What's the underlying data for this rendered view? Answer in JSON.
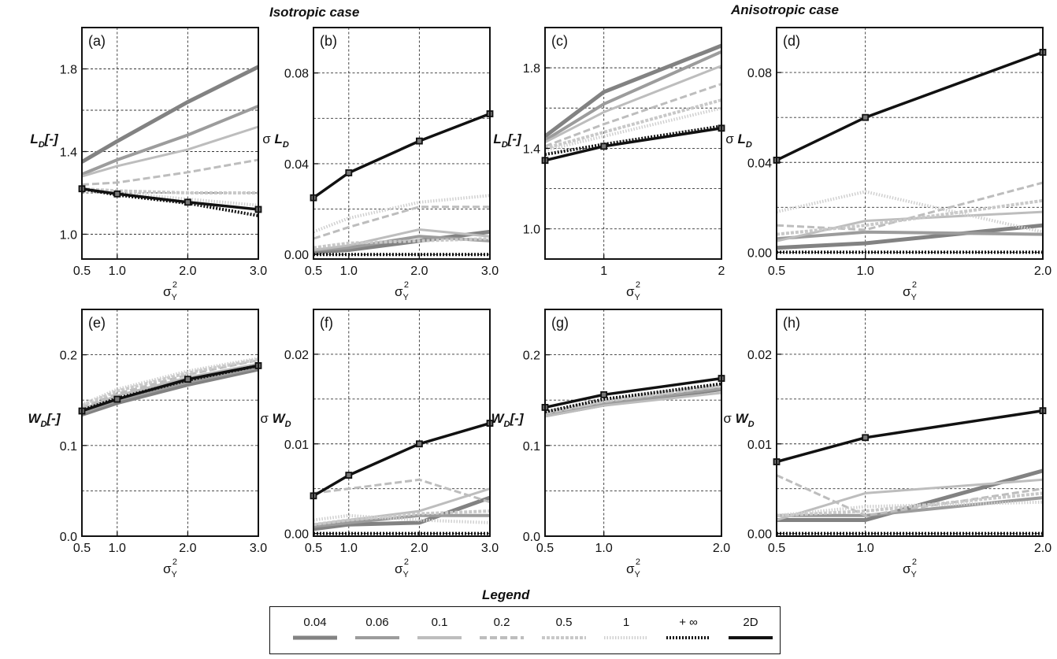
{
  "titles": {
    "isotropic": "Isotropic case",
    "anisotropic": "Anisotropic case"
  },
  "legend": {
    "title": "Legend",
    "items": [
      {
        "label": "0.04",
        "color": "#828282",
        "width": 5,
        "dash": ""
      },
      {
        "label": "0.06",
        "color": "#9c9c9c",
        "width": 4,
        "dash": ""
      },
      {
        "label": "0.1",
        "color": "#bdbdbd",
        "width": 3,
        "dash": ""
      },
      {
        "label": "0.2",
        "color": "#bdbdbd",
        "width": 3,
        "dash": "9 4"
      },
      {
        "label": "0.5",
        "color": "#c8c8c8",
        "width": 4,
        "dash": "4 2"
      },
      {
        "label": "1",
        "color": "#d0d0d0",
        "width": 4,
        "dash": "1.5 2"
      },
      {
        "label": "+ ∞",
        "color": "#111111",
        "width": 4,
        "dash": "2 2"
      },
      {
        "label": "2D",
        "color": "#111111",
        "width": 3.5,
        "dash": "",
        "markers": true
      }
    ]
  },
  "chart_data": [
    {
      "panel": "(a)",
      "type": "line",
      "ylabel": "L_D[-]",
      "xlabel": "σ_Y^2",
      "xlim": [
        0.5,
        3
      ],
      "ylim": [
        0.88,
        2.0
      ],
      "xticks": [
        0.5,
        1,
        2,
        3
      ],
      "yticks": [
        1.0,
        1.4,
        1.8
      ],
      "ygrid": [
        1.0,
        1.2,
        1.4,
        1.6,
        1.8
      ],
      "series": [
        {
          "name": "0.04",
          "x": [
            0.5,
            1,
            2,
            3
          ],
          "y": [
            1.35,
            1.45,
            1.64,
            1.81
          ]
        },
        {
          "name": "0.06",
          "x": [
            0.5,
            1,
            2,
            3
          ],
          "y": [
            1.29,
            1.36,
            1.48,
            1.62
          ]
        },
        {
          "name": "0.1",
          "x": [
            0.5,
            1,
            2,
            3
          ],
          "y": [
            1.28,
            1.33,
            1.41,
            1.52
          ]
        },
        {
          "name": "0.2",
          "x": [
            0.5,
            1,
            2,
            3
          ],
          "y": [
            1.24,
            1.25,
            1.3,
            1.36
          ]
        },
        {
          "name": "0.5",
          "x": [
            0.5,
            1,
            2,
            3
          ],
          "y": [
            1.22,
            1.21,
            1.2,
            1.2
          ]
        },
        {
          "name": "1",
          "x": [
            0.5,
            1,
            2,
            3
          ],
          "y": [
            1.21,
            1.2,
            1.17,
            1.14
          ]
        },
        {
          "name": "+ ∞",
          "x": [
            0.5,
            1,
            2,
            3
          ],
          "y": [
            1.22,
            1.19,
            1.15,
            1.09
          ]
        },
        {
          "name": "2D",
          "x": [
            0.5,
            1,
            2,
            3
          ],
          "y": [
            1.22,
            1.195,
            1.155,
            1.12
          ]
        }
      ]
    },
    {
      "panel": "(b)",
      "type": "line",
      "ylabel": "σ L_D",
      "xlabel": "σ_Y^2",
      "xlim": [
        0.5,
        3
      ],
      "ylim": [
        -0.002,
        0.1
      ],
      "xticks": [
        0.5,
        1,
        2,
        3
      ],
      "yticks": [
        0.0,
        0.04,
        0.08
      ],
      "ygrid": [
        0.0,
        0.02,
        0.04,
        0.06,
        0.08
      ],
      "series": [
        {
          "name": "0.04",
          "x": [
            0.5,
            1,
            2,
            3
          ],
          "y": [
            0.001,
            0.002,
            0.006,
            0.01
          ]
        },
        {
          "name": "0.06",
          "x": [
            0.5,
            1,
            2,
            3
          ],
          "y": [
            0.002,
            0.003,
            0.008,
            0.006
          ]
        },
        {
          "name": "0.1",
          "x": [
            0.5,
            1,
            2,
            3
          ],
          "y": [
            0.002,
            0.004,
            0.011,
            0.008
          ]
        },
        {
          "name": "0.2",
          "x": [
            0.5,
            1,
            2,
            3
          ],
          "y": [
            0.007,
            0.012,
            0.021,
            0.021
          ]
        },
        {
          "name": "0.5",
          "x": [
            0.5,
            1,
            2,
            3
          ],
          "y": [
            0.003,
            0.005,
            0.006,
            0.007
          ]
        },
        {
          "name": "1",
          "x": [
            0.5,
            1,
            2,
            3
          ],
          "y": [
            0.01,
            0.016,
            0.023,
            0.026
          ]
        },
        {
          "name": "+ ∞",
          "x": [
            0.5,
            1,
            2,
            3
          ],
          "y": [
            0.0,
            0.0,
            0.0,
            0.0
          ]
        },
        {
          "name": "2D",
          "x": [
            0.5,
            1,
            2,
            3
          ],
          "y": [
            0.025,
            0.036,
            0.05,
            0.062
          ]
        }
      ]
    },
    {
      "panel": "(c)",
      "type": "line",
      "ylabel": "L_D[-]",
      "xlabel": "σ_Y^2",
      "xlim": [
        0.5,
        2
      ],
      "ylim": [
        0.85,
        2.0
      ],
      "xticks": [
        1,
        2
      ],
      "yticks": [
        1.0,
        1.4,
        1.8
      ],
      "ygrid": [
        1.0,
        1.2,
        1.4,
        1.6,
        1.8
      ],
      "series": [
        {
          "name": "0.04",
          "x": [
            0.5,
            1,
            2
          ],
          "y": [
            1.46,
            1.68,
            1.91
          ]
        },
        {
          "name": "0.06",
          "x": [
            0.5,
            1,
            2
          ],
          "y": [
            1.44,
            1.62,
            1.88
          ]
        },
        {
          "name": "0.1",
          "x": [
            0.5,
            1,
            2
          ],
          "y": [
            1.43,
            1.58,
            1.81
          ]
        },
        {
          "name": "0.2",
          "x": [
            0.5,
            1,
            2
          ],
          "y": [
            1.41,
            1.52,
            1.72
          ]
        },
        {
          "name": "0.5",
          "x": [
            0.5,
            1,
            2
          ],
          "y": [
            1.4,
            1.48,
            1.64
          ]
        },
        {
          "name": "1",
          "x": [
            0.5,
            1,
            2
          ],
          "y": [
            1.39,
            1.46,
            1.6
          ]
        },
        {
          "name": "+ ∞",
          "x": [
            0.5,
            1,
            2
          ],
          "y": [
            1.37,
            1.42,
            1.51
          ]
        },
        {
          "name": "2D",
          "x": [
            0.5,
            1,
            2
          ],
          "y": [
            1.34,
            1.41,
            1.5
          ]
        }
      ]
    },
    {
      "panel": "(d)",
      "type": "line",
      "ylabel": "σ L_D",
      "xlabel": "σ_Y^2",
      "xlim": [
        0.5,
        2
      ],
      "ylim": [
        -0.003,
        0.1
      ],
      "xticks": [
        0.5,
        1,
        2
      ],
      "yticks": [
        0.0,
        0.04,
        0.08
      ],
      "ygrid": [
        0.0,
        0.02,
        0.04,
        0.06,
        0.08
      ],
      "series": [
        {
          "name": "0.04",
          "x": [
            0.5,
            1,
            2
          ],
          "y": [
            0.002,
            0.004,
            0.012
          ]
        },
        {
          "name": "0.06",
          "x": [
            0.5,
            1,
            2
          ],
          "y": [
            0.006,
            0.009,
            0.008
          ]
        },
        {
          "name": "0.1",
          "x": [
            0.5,
            1,
            2
          ],
          "y": [
            0.005,
            0.014,
            0.018
          ]
        },
        {
          "name": "0.2",
          "x": [
            0.5,
            1,
            2
          ],
          "y": [
            0.012,
            0.01,
            0.031
          ]
        },
        {
          "name": "0.5",
          "x": [
            0.5,
            1,
            2
          ],
          "y": [
            0.008,
            0.012,
            0.023
          ]
        },
        {
          "name": "1",
          "x": [
            0.5,
            1,
            2
          ],
          "y": [
            0.018,
            0.027,
            0.009
          ]
        },
        {
          "name": "+ ∞",
          "x": [
            0.5,
            1,
            2
          ],
          "y": [
            0.0,
            0.0,
            0.0
          ]
        },
        {
          "name": "2D",
          "x": [
            0.5,
            1,
            2
          ],
          "y": [
            0.041,
            0.06,
            0.089
          ]
        }
      ]
    },
    {
      "panel": "(e)",
      "type": "line",
      "ylabel": "W_D[-]",
      "xlabel": "σ_Y^2",
      "xlim": [
        0.5,
        3
      ],
      "ylim": [
        0.0,
        0.25
      ],
      "xticks": [
        0.5,
        1,
        2,
        3
      ],
      "yticks": [
        0.0,
        0.1,
        0.2
      ],
      "ygrid": [
        0.05,
        0.1,
        0.15,
        0.2
      ],
      "series": [
        {
          "name": "0.04",
          "x": [
            0.5,
            1,
            2,
            3
          ],
          "y": [
            0.134,
            0.147,
            0.167,
            0.184
          ]
        },
        {
          "name": "0.06",
          "x": [
            0.5,
            1,
            2,
            3
          ],
          "y": [
            0.136,
            0.15,
            0.17,
            0.186
          ]
        },
        {
          "name": "0.1",
          "x": [
            0.5,
            1,
            2,
            3
          ],
          "y": [
            0.14,
            0.155,
            0.175,
            0.19
          ]
        },
        {
          "name": "0.2",
          "x": [
            0.5,
            1,
            2,
            3
          ],
          "y": [
            0.142,
            0.157,
            0.178,
            0.194
          ]
        },
        {
          "name": "0.5",
          "x": [
            0.5,
            1,
            2,
            3
          ],
          "y": [
            0.144,
            0.16,
            0.18,
            0.195
          ]
        },
        {
          "name": "1",
          "x": [
            0.5,
            1,
            2,
            3
          ],
          "y": [
            0.145,
            0.162,
            0.182,
            0.196
          ]
        },
        {
          "name": "+ ∞",
          "x": [
            0.5,
            1,
            2,
            3
          ],
          "y": [
            0.139,
            0.152,
            0.172,
            0.188
          ]
        },
        {
          "name": "2D",
          "x": [
            0.5,
            1,
            2,
            3
          ],
          "y": [
            0.138,
            0.151,
            0.173,
            0.188
          ]
        }
      ]
    },
    {
      "panel": "(f)",
      "type": "line",
      "ylabel": "σ W_D",
      "xlabel": "σ_Y^2",
      "xlim": [
        0.5,
        3
      ],
      "ylim": [
        -0.0003,
        0.025
      ],
      "xticks": [
        0.5,
        1,
        2,
        3
      ],
      "yticks": [
        0.0,
        0.01,
        0.02
      ],
      "ygrid": [
        0.0,
        0.005,
        0.01,
        0.015,
        0.02
      ],
      "series": [
        {
          "name": "0.04",
          "x": [
            0.5,
            1,
            2,
            3
          ],
          "y": [
            0.0005,
            0.001,
            0.0012,
            0.004
          ]
        },
        {
          "name": "0.06",
          "x": [
            0.5,
            1,
            2,
            3
          ],
          "y": [
            0.0008,
            0.0012,
            0.002,
            0.002
          ]
        },
        {
          "name": "0.1",
          "x": [
            0.5,
            1,
            2,
            3
          ],
          "y": [
            0.001,
            0.0015,
            0.0025,
            0.005
          ]
        },
        {
          "name": "0.2",
          "x": [
            0.5,
            1,
            2,
            3
          ],
          "y": [
            0.0045,
            0.005,
            0.006,
            0.0035
          ]
        },
        {
          "name": "0.5",
          "x": [
            0.5,
            1,
            2,
            3
          ],
          "y": [
            0.001,
            0.0015,
            0.0022,
            0.0025
          ]
        },
        {
          "name": "1",
          "x": [
            0.5,
            1,
            2,
            3
          ],
          "y": [
            0.0015,
            0.002,
            0.0015,
            0.0012
          ]
        },
        {
          "name": "+ ∞",
          "x": [
            0.5,
            1,
            2,
            3
          ],
          "y": [
            0.0,
            0.0,
            0.0,
            0.0
          ]
        },
        {
          "name": "2D",
          "x": [
            0.5,
            1,
            2,
            3
          ],
          "y": [
            0.0042,
            0.0065,
            0.01,
            0.0123
          ]
        }
      ]
    },
    {
      "panel": "(g)",
      "type": "line",
      "ylabel": "W_D[-]",
      "xlabel": "σ_Y^2",
      "xlim": [
        0.5,
        2
      ],
      "ylim": [
        0.0,
        0.25
      ],
      "xticks": [
        0.5,
        1,
        2
      ],
      "yticks": [
        0.0,
        0.1,
        0.2
      ],
      "ygrid": [
        0.05,
        0.1,
        0.15,
        0.2
      ],
      "series": [
        {
          "name": "0.04",
          "x": [
            0.5,
            1,
            2
          ],
          "y": [
            0.133,
            0.145,
            0.162
          ]
        },
        {
          "name": "0.06",
          "x": [
            0.5,
            1,
            2
          ],
          "y": [
            0.134,
            0.146,
            0.163
          ]
        },
        {
          "name": "0.1",
          "x": [
            0.5,
            1,
            2
          ],
          "y": [
            0.132,
            0.144,
            0.158
          ]
        },
        {
          "name": "0.2",
          "x": [
            0.5,
            1,
            2
          ],
          "y": [
            0.135,
            0.148,
            0.165
          ]
        },
        {
          "name": "0.5",
          "x": [
            0.5,
            1,
            2
          ],
          "y": [
            0.136,
            0.149,
            0.166
          ]
        },
        {
          "name": "1",
          "x": [
            0.5,
            1,
            2
          ],
          "y": [
            0.137,
            0.15,
            0.167
          ]
        },
        {
          "name": "+ ∞",
          "x": [
            0.5,
            1,
            2
          ],
          "y": [
            0.137,
            0.151,
            0.168
          ]
        },
        {
          "name": "2D",
          "x": [
            0.5,
            1,
            2
          ],
          "y": [
            0.142,
            0.156,
            0.174
          ]
        }
      ]
    },
    {
      "panel": "(h)",
      "type": "line",
      "ylabel": "σ W_D",
      "xlabel": "σ_Y^2",
      "xlim": [
        0.5,
        2
      ],
      "ylim": [
        -0.0003,
        0.025
      ],
      "xticks": [
        0.5,
        1,
        2
      ],
      "yticks": [
        0.0,
        0.01,
        0.02
      ],
      "ygrid": [
        0.0,
        0.005,
        0.01,
        0.015,
        0.02
      ],
      "series": [
        {
          "name": "0.04",
          "x": [
            0.5,
            1,
            2
          ],
          "y": [
            0.0015,
            0.0015,
            0.007
          ]
        },
        {
          "name": "0.06",
          "x": [
            0.5,
            1,
            2
          ],
          "y": [
            0.002,
            0.002,
            0.004
          ]
        },
        {
          "name": "0.1",
          "x": [
            0.5,
            1,
            2
          ],
          "y": [
            0.0015,
            0.0045,
            0.006
          ]
        },
        {
          "name": "0.2",
          "x": [
            0.5,
            1,
            2
          ],
          "y": [
            0.0065,
            0.002,
            0.005
          ]
        },
        {
          "name": "0.5",
          "x": [
            0.5,
            1,
            2
          ],
          "y": [
            0.002,
            0.0025,
            0.0045
          ]
        },
        {
          "name": "1",
          "x": [
            0.5,
            1,
            2
          ],
          "y": [
            0.002,
            0.003,
            0.0035
          ]
        },
        {
          "name": "+ ∞",
          "x": [
            0.5,
            1,
            2
          ],
          "y": [
            0.0,
            0.0,
            0.0
          ]
        },
        {
          "name": "2D",
          "x": [
            0.5,
            1,
            2
          ],
          "y": [
            0.008,
            0.0107,
            0.0137
          ]
        }
      ]
    }
  ]
}
